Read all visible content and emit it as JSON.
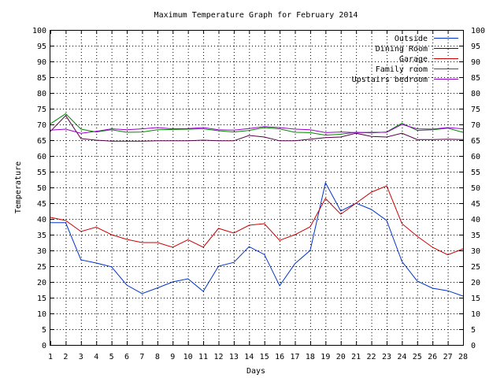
{
  "chart_data": {
    "type": "line",
    "title": "Maximum Temperature Graph for February 2014",
    "xlabel": "Days",
    "ylabel": "Temperature",
    "xlim": [
      1,
      28
    ],
    "ylim": [
      0,
      100
    ],
    "x_ticks": [
      1,
      2,
      3,
      4,
      5,
      6,
      7,
      8,
      9,
      10,
      11,
      12,
      13,
      14,
      15,
      16,
      17,
      18,
      19,
      20,
      21,
      22,
      23,
      24,
      25,
      26,
      27,
      28
    ],
    "y_ticks": [
      0,
      5,
      10,
      15,
      20,
      25,
      30,
      35,
      40,
      45,
      50,
      55,
      60,
      65,
      70,
      75,
      80,
      85,
      90,
      95,
      100
    ],
    "grid": true,
    "legend_position": "top-right",
    "x": [
      1,
      2,
      3,
      4,
      5,
      6,
      7,
      8,
      9,
      10,
      11,
      12,
      13,
      14,
      15,
      16,
      17,
      18,
      19,
      20,
      21,
      22,
      23,
      24,
      25,
      26,
      27,
      28
    ],
    "series": [
      {
        "name": "Outside",
        "color": "#0033cc",
        "values": [
          38.8,
          38.8,
          27,
          26,
          24.8,
          19,
          16.3,
          18.1,
          20,
          21,
          17,
          25,
          26.2,
          31.2,
          28.7,
          18.8,
          25.8,
          30,
          51.5,
          42.5,
          45,
          43,
          39.5,
          26.5,
          20.3,
          18,
          17.2,
          15.5
        ]
      },
      {
        "name": "Dining Room",
        "color": "#550044",
        "values": [
          67.8,
          72.8,
          65.5,
          65,
          64.7,
          64.7,
          64.7,
          64.8,
          64.8,
          64.8,
          65,
          64.8,
          64.8,
          66.5,
          66,
          64.8,
          64.8,
          65.3,
          65.8,
          66,
          67.2,
          66.2,
          66,
          67.2,
          65.2,
          65.2,
          65.3,
          65.2
        ]
      },
      {
        "name": "Garage",
        "color": "#cc0000",
        "values": [
          40.5,
          39.5,
          36,
          37.4,
          35,
          33.5,
          32.5,
          32.5,
          31,
          33.4,
          31,
          37,
          35.5,
          38,
          38.5,
          33.2,
          35,
          37.5,
          46.5,
          41.5,
          45,
          48.5,
          50.5,
          38.5,
          34.5,
          31,
          28.6,
          30.5
        ]
      },
      {
        "name": "Family room",
        "color": "#008800",
        "values": [
          70.2,
          73.4,
          68.5,
          67.6,
          68.3,
          67.5,
          67.6,
          68.3,
          68.4,
          68.5,
          68.6,
          68,
          67.6,
          68.1,
          69,
          68.6,
          67.5,
          67.4,
          66.6,
          66.9,
          67.5,
          67.3,
          67.6,
          70.4,
          68.1,
          68.3,
          68.8,
          67.5
        ]
      },
      {
        "name": "Upstairs bedroom",
        "color": "#9900cc",
        "values": [
          68.2,
          68.5,
          67.2,
          67.8,
          68.6,
          68.3,
          68.6,
          69,
          68.6,
          68.7,
          69,
          68.3,
          68.2,
          68.7,
          69.3,
          69,
          68.5,
          68.3,
          67.4,
          67.6,
          67.4,
          67.5,
          67.5,
          70,
          68.6,
          68.5,
          69,
          68.6
        ]
      }
    ]
  }
}
